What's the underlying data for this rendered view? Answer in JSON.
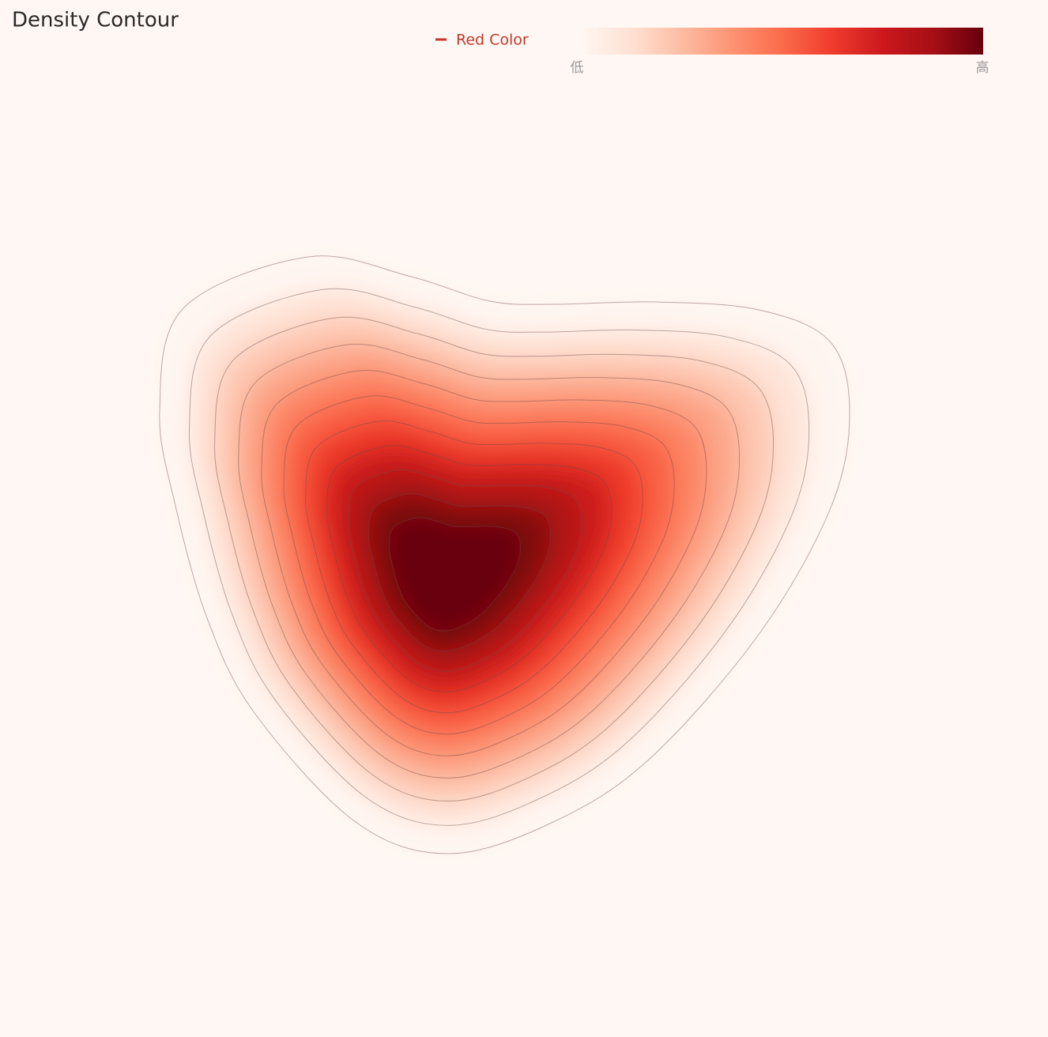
{
  "chart_data": {
    "type": "contour",
    "title": "Density Contour",
    "series": [
      {
        "name": "Red Color",
        "color": "#c0392b"
      }
    ],
    "colorscale": [
      "#fff5f0",
      "#fee0d2",
      "#fcbba1",
      "#fc9272",
      "#fb6a4a",
      "#ef3b2c",
      "#cb181d",
      "#a50f15",
      "#67000d"
    ],
    "colorbar_labels": [
      "低",
      "高"
    ]
  }
}
